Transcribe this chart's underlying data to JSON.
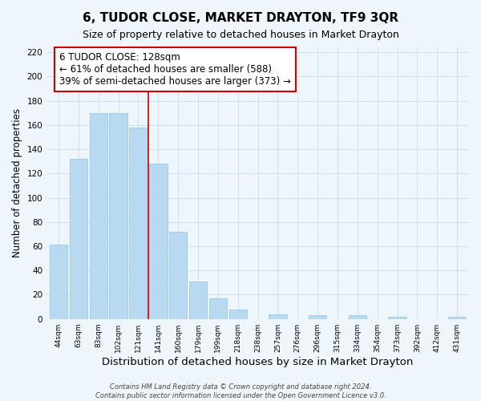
{
  "title": "6, TUDOR CLOSE, MARKET DRAYTON, TF9 3QR",
  "subtitle": "Size of property relative to detached houses in Market Drayton",
  "xlabel": "Distribution of detached houses by size in Market Drayton",
  "ylabel": "Number of detached properties",
  "footer_line1": "Contains HM Land Registry data © Crown copyright and database right 2024.",
  "footer_line2": "Contains public sector information licensed under the Open Government Licence v3.0.",
  "bar_labels": [
    "44sqm",
    "63sqm",
    "83sqm",
    "102sqm",
    "121sqm",
    "141sqm",
    "160sqm",
    "179sqm",
    "199sqm",
    "218sqm",
    "238sqm",
    "257sqm",
    "276sqm",
    "296sqm",
    "315sqm",
    "334sqm",
    "354sqm",
    "373sqm",
    "392sqm",
    "412sqm",
    "431sqm"
  ],
  "bar_values": [
    61,
    132,
    170,
    170,
    158,
    128,
    72,
    31,
    17,
    8,
    0,
    4,
    0,
    3,
    0,
    3,
    0,
    2,
    0,
    0,
    2
  ],
  "bar_color": "#b8d9f0",
  "bar_edgecolor": "#8ec4e8",
  "property_line_x": 4.5,
  "property_line_color": "#cc0000",
  "annotation_line1": "6 TUDOR CLOSE: 128sqm",
  "annotation_line2": "← 61% of detached houses are smaller (588)",
  "annotation_line3": "39% of semi-detached houses are larger (373) →",
  "annotation_box_color": "#ffffff",
  "annotation_box_edgecolor": "#cc0000",
  "annotation_fontsize": 8.5,
  "ylim": [
    0,
    225
  ],
  "yticks": [
    0,
    20,
    40,
    60,
    80,
    100,
    120,
    140,
    160,
    180,
    200,
    220
  ],
  "grid_color": "#cce0f0",
  "background_color": "#eef6fc",
  "title_fontsize": 11,
  "subtitle_fontsize": 9,
  "xlabel_fontsize": 9.5,
  "ylabel_fontsize": 8.5
}
